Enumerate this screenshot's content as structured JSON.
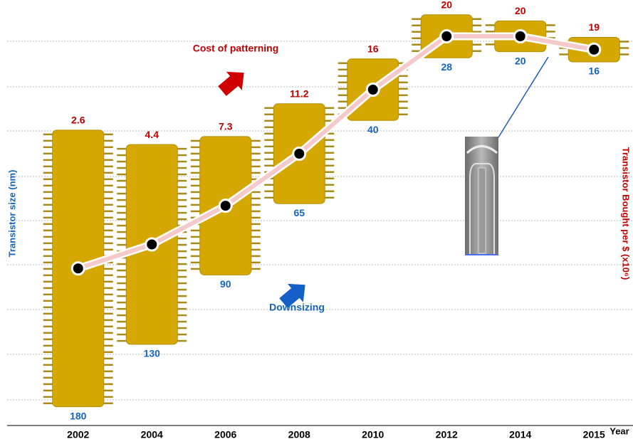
{
  "chart_data": {
    "type": "chip-line",
    "x_label": "Year",
    "categories": [
      "2002",
      "2004",
      "2006",
      "2008",
      "2010",
      "2012",
      "2014",
      "2015"
    ],
    "series": [
      {
        "name": "Transistor size (nm)",
        "type": "chip",
        "color": "#d4a800",
        "label_color": "#1565c0",
        "values": [
          180,
          130,
          90,
          65,
          40,
          28,
          20,
          16
        ]
      },
      {
        "name": "Transistor Bought per $ (x10⁶)",
        "type": "line",
        "axis": "y2",
        "color": "#f5c9c9",
        "label_color": "#c00000",
        "values": [
          2.6,
          4.4,
          7.3,
          11.2,
          16,
          20,
          20,
          19
        ]
      }
    ],
    "ylim": [
      0,
      200
    ],
    "y2lim": [
      0,
      20
    ],
    "annotations": [
      {
        "text": "Cost of patterning",
        "color": "#c00000"
      },
      {
        "text": "Downsizing",
        "color": "#1565c0"
      }
    ]
  }
}
